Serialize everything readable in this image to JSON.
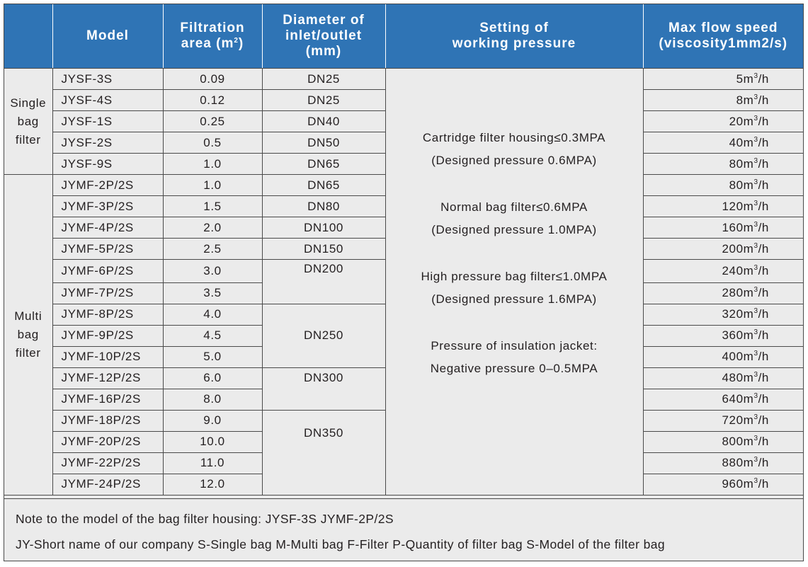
{
  "header": {
    "category": "",
    "model": "Model",
    "area_line1": "Filtration",
    "area_line2": "area (m",
    "area_sup": "2",
    "area_close": ")",
    "diameter_line1": "Diameter of",
    "diameter_line2": "inlet/outlet",
    "diameter_line3": "(mm)",
    "pressure_line1": "Setting of",
    "pressure_line2": "working pressure",
    "speed_line1": "Max flow speed",
    "speed_line2": "(viscosity1mm2/s)"
  },
  "categories": {
    "single": [
      "Single",
      "bag",
      "filter"
    ],
    "multi": [
      "Multi",
      "bag",
      "filter"
    ]
  },
  "rows": [
    {
      "model": "JYSF-3S",
      "area": "0.09",
      "diameter": "DN25",
      "speed": "5"
    },
    {
      "model": "JYSF-4S",
      "area": "0.12",
      "diameter": "DN25",
      "speed": "8"
    },
    {
      "model": "JYSF-1S",
      "area": "0.25",
      "diameter": "DN40",
      "speed": "20"
    },
    {
      "model": "JYSF-2S",
      "area": "0.5",
      "diameter": "DN50",
      "speed": "40"
    },
    {
      "model": "JYSF-9S",
      "area": "1.0",
      "diameter": "DN65",
      "speed": "80"
    },
    {
      "model": "JYMF-2P/2S",
      "area": "1.0",
      "diameter": "DN65",
      "speed": "80"
    },
    {
      "model": "JYMF-3P/2S",
      "area": "1.5",
      "diameter": "DN80",
      "speed": "120"
    },
    {
      "model": "JYMF-4P/2S",
      "area": "2.0",
      "diameter": "DN100",
      "speed": "160"
    },
    {
      "model": "JYMF-5P/2S",
      "area": "2.5",
      "diameter": "DN150",
      "speed": "200"
    },
    {
      "model": "JYMF-6P/2S",
      "area": "3.0",
      "diameter": "DN200",
      "speed": "240"
    },
    {
      "model": "JYMF-7P/2S",
      "area": "3.5",
      "diameter": "",
      "speed": "280"
    },
    {
      "model": "JYMF-8P/2S",
      "area": "4.0",
      "diameter": "",
      "speed": "320"
    },
    {
      "model": "JYMF-9P/2S",
      "area": "4.5",
      "diameter": "DN250",
      "speed": "360"
    },
    {
      "model": "JYMF-10P/2S",
      "area": "5.0",
      "diameter": "",
      "speed": "400"
    },
    {
      "model": "JYMF-12P/2S",
      "area": "6.0",
      "diameter": "DN300",
      "speed": "480"
    },
    {
      "model": "JYMF-16P/2S",
      "area": "8.0",
      "diameter": "",
      "speed": "640"
    },
    {
      "model": "JYMF-18P/2S",
      "area": "9.0",
      "diameter": "",
      "speed": "720"
    },
    {
      "model": "JYMF-20P/2S",
      "area": "10.0",
      "diameter": "DN350",
      "speed": "800"
    },
    {
      "model": "JYMF-22P/2S",
      "area": "11.0",
      "diameter": "",
      "speed": "880"
    },
    {
      "model": "JYMF-24P/2S",
      "area": "12.0",
      "diameter": "",
      "speed": "960"
    }
  ],
  "speed_unit_pre": "m",
  "speed_unit_sup": "3",
  "speed_unit_post": "/h",
  "pressure": [
    "Cartridge filter housing≤0.3MPA",
    "(Designed pressure 0.6MPA)",
    "Normal bag filter≤0.6MPA",
    "(Designed pressure 1.0MPA)",
    "High pressure bag filter≤1.0MPA",
    "(Designed pressure 1.6MPA)",
    "Pressure of insulation jacket:",
    "Negative pressure 0–0.5MPA"
  ],
  "notes": {
    "line1": "Note to the model of the bag filter housing: JYSF-3S  JYMF-2P/2S",
    "line2": "JY-Short name of our company  S-Single bag  M-Multi bag  F-Filter  P-Quantity of filter bag  S-Model of the filter bag"
  },
  "colors": {
    "header_bg": "#2f74b5",
    "body_bg": "#ebebeb",
    "text": "#231f20"
  }
}
